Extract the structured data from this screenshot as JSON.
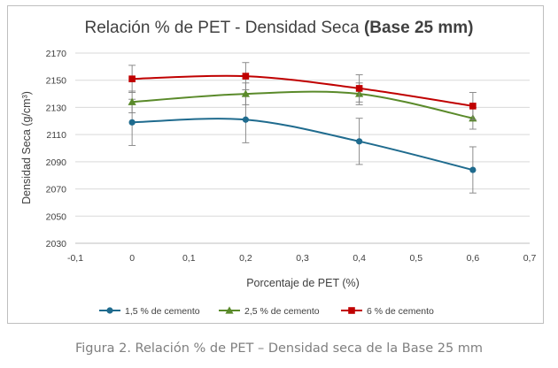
{
  "chart_data": {
    "type": "line",
    "title": "Relación % de PET - Densidad Seca",
    "title_bold": "(Base 25 mm)",
    "xlabel": "Porcentaje de PET (%)",
    "ylabel": "Densidad Seca (g/cm³)",
    "xlim": [
      -0.1,
      0.7
    ],
    "ylim": [
      2030,
      2170
    ],
    "x_ticks": [
      "-0,1",
      "0",
      "0,1",
      "0,2",
      "0,3",
      "0,4",
      "0,5",
      "0,6",
      "0,7"
    ],
    "y_ticks": [
      "2030",
      "2050",
      "2070",
      "2090",
      "2110",
      "2130",
      "2150",
      "2170"
    ],
    "grid": "horizontal",
    "legend_position": "bottom",
    "x": [
      0,
      0.2,
      0.4,
      0.6
    ],
    "series": [
      {
        "name": "1,5 % de cemento",
        "color": "#1f6b8e",
        "marker": "circle",
        "values": [
          2119,
          2121,
          2105,
          2084
        ],
        "error": [
          17,
          17,
          17,
          17
        ]
      },
      {
        "name": "2,5 % de cemento",
        "color": "#5a8a2a",
        "marker": "triangle",
        "values": [
          2134,
          2140,
          2140,
          2122
        ],
        "error": [
          8,
          8,
          8,
          8
        ]
      },
      {
        "name": "6 % de cemento",
        "color": "#c00000",
        "marker": "square",
        "values": [
          2151,
          2153,
          2144,
          2131
        ],
        "error": [
          10,
          10,
          10,
          10
        ]
      }
    ]
  },
  "caption": "Figura 2. Relación % de PET – Densidad seca de la Base 25 mm"
}
